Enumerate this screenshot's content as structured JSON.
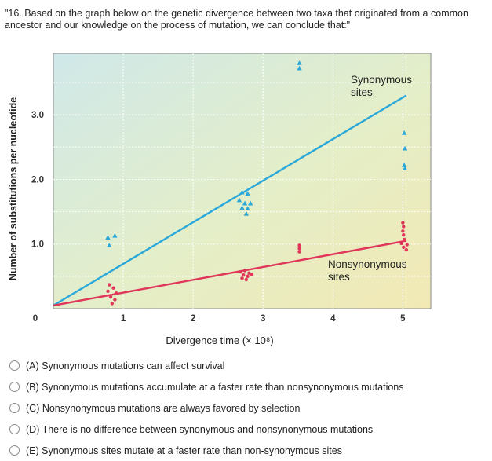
{
  "question": {
    "text": "\"16. Based on the graph below on the genetic divergence between two taxa that originated from a common ancestor and our knowledge on the process of mutation, we can conclude that:\""
  },
  "chart_data": {
    "type": "scatter",
    "xlabel": "Divergence time (× 10⁸)",
    "ylabel": "Number of substitutions per nucleotide",
    "x_ticks": [
      "0",
      "1",
      "2",
      "3",
      "4",
      "5"
    ],
    "y_ticks": [
      "1.0",
      "2.0",
      "3.0"
    ],
    "xlim": [
      0,
      5.4
    ],
    "ylim": [
      0,
      3.95
    ],
    "grid": true,
    "annotations": [
      {
        "text_lines": [
          "Synonymous",
          "sites"
        ],
        "series": "synonymous"
      },
      {
        "text_lines": [
          "Nonsynonymous",
          "sites"
        ],
        "series": "nonsynonymous"
      }
    ],
    "series": [
      {
        "name": "Synonymous sites",
        "color": "#2aa8da",
        "marker": "triangle",
        "fit_line": [
          [
            0,
            0.05
          ],
          [
            5.05,
            3.3
          ]
        ],
        "points": [
          [
            0.78,
            1.1
          ],
          [
            0.88,
            1.13
          ],
          [
            0.8,
            0.98
          ],
          [
            2.7,
            1.8
          ],
          [
            2.78,
            1.78
          ],
          [
            2.66,
            1.68
          ],
          [
            2.74,
            1.63
          ],
          [
            2.82,
            1.63
          ],
          [
            2.7,
            1.56
          ],
          [
            2.78,
            1.55
          ],
          [
            2.76,
            1.47
          ],
          [
            3.52,
            3.8
          ],
          [
            3.52,
            3.72
          ],
          [
            5.02,
            2.72
          ],
          [
            5.03,
            2.48
          ],
          [
            5.02,
            2.22
          ],
          [
            5.03,
            2.17
          ]
        ]
      },
      {
        "name": "Nonsynonymous sites",
        "color": "#e0365a",
        "marker": "dot",
        "fit_line": [
          [
            0,
            0.05
          ],
          [
            5.05,
            1.05
          ]
        ],
        "points": [
          [
            0.8,
            0.37
          ],
          [
            0.86,
            0.32
          ],
          [
            0.78,
            0.27
          ],
          [
            0.9,
            0.24
          ],
          [
            0.82,
            0.18
          ],
          [
            0.88,
            0.14
          ],
          [
            0.84,
            0.08
          ],
          [
            2.68,
            0.57
          ],
          [
            2.74,
            0.59
          ],
          [
            2.8,
            0.55
          ],
          [
            2.72,
            0.52
          ],
          [
            2.78,
            0.5
          ],
          [
            2.84,
            0.53
          ],
          [
            2.7,
            0.47
          ],
          [
            2.76,
            0.45
          ],
          [
            3.52,
            0.98
          ],
          [
            3.52,
            0.93
          ],
          [
            3.52,
            0.88
          ],
          [
            5.0,
            1.33
          ],
          [
            5.01,
            1.27
          ],
          [
            5.0,
            1.2
          ],
          [
            5.01,
            1.14
          ],
          [
            5.02,
            1.07
          ],
          [
            4.98,
            1.01
          ],
          [
            5.06,
            0.99
          ],
          [
            5.01,
            0.95
          ],
          [
            5.05,
            0.91
          ]
        ]
      }
    ]
  },
  "options": [
    {
      "label": "(A) Synonymous mutations can affect survival"
    },
    {
      "label": "(B) Synonymous mutations accumulate at a faster rate than nonsynonymous mutations"
    },
    {
      "label": "(C) Nonsynonymous mutations are always favored by selection"
    },
    {
      "label": "(D) There is no difference between synonymous and nonsynonymous mutations"
    },
    {
      "label": "(E) Synonymous sites mutate at a faster rate than non-synonymous sites"
    }
  ],
  "colors": {
    "synonymous": "#2aa8da",
    "nonsynonymous": "#e0365a",
    "plot_top_left": "#cfe8e9",
    "plot_bottom_right": "#f2e9b4"
  }
}
